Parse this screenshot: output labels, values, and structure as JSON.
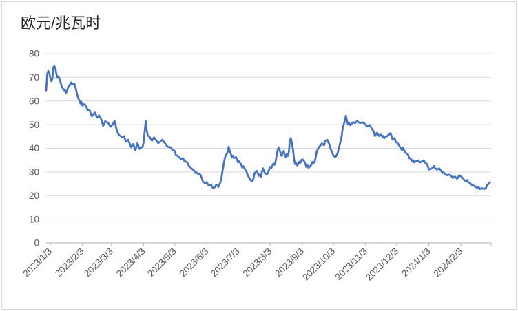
{
  "chart_data": {
    "type": "line",
    "title": "欧元/兆瓦时",
    "legend": false,
    "grid": true,
    "x_axis": {
      "day_zero_date": "2023/1/3",
      "axis_day_range": [
        -4,
        425
      ],
      "tick_labels": [
        "2023/1/3",
        "2023/2/3",
        "2023/3/3",
        "2023/4/3",
        "2023/5/3",
        "2023/6/3",
        "2023/7/3",
        "2023/8/3",
        "2023/9/3",
        "2023/10/3",
        "2023/11/3",
        "2023/12/3",
        "2024/1/3",
        "2024/2/3"
      ],
      "tick_day_offsets": [
        0,
        31,
        59,
        90,
        120,
        151,
        181,
        212,
        243,
        273,
        304,
        334,
        365,
        396
      ]
    },
    "y_axis": {
      "min": 0,
      "max": 80,
      "tick_step": 10,
      "tick_labels": [
        "0",
        "10",
        "20",
        "30",
        "40",
        "50",
        "60",
        "70",
        "80"
      ]
    },
    "series": [
      {
        "points_day_value": [
          [
            -4,
            64.5
          ],
          [
            -3,
            71.3
          ],
          [
            -2,
            72.7
          ],
          [
            -1,
            71.9
          ],
          [
            0,
            69.8
          ],
          [
            1,
            68.4
          ],
          [
            2,
            69.3
          ],
          [
            3,
            74.2
          ],
          [
            4,
            74.7
          ],
          [
            5,
            73.6
          ],
          [
            6,
            71.3
          ],
          [
            7,
            69.8
          ],
          [
            8,
            70.4
          ],
          [
            9,
            69.0
          ],
          [
            10,
            67.8
          ],
          [
            11,
            66.0
          ],
          [
            13,
            64.6
          ],
          [
            14,
            64.9
          ],
          [
            15,
            63.4
          ],
          [
            16,
            64.0
          ],
          [
            17,
            65.5
          ],
          [
            18,
            66.3
          ],
          [
            19,
            66.9
          ],
          [
            20,
            67.8
          ],
          [
            21,
            66.9
          ],
          [
            23,
            67.5
          ],
          [
            24,
            66.0
          ],
          [
            25,
            64.6
          ],
          [
            26,
            62.5
          ],
          [
            27,
            61.1
          ],
          [
            28,
            60.2
          ],
          [
            29,
            59.0
          ],
          [
            30,
            59.6
          ],
          [
            31,
            58.1
          ],
          [
            33,
            58.7
          ],
          [
            35,
            57.3
          ],
          [
            36,
            56.1
          ],
          [
            38,
            56.0
          ],
          [
            40,
            53.6
          ],
          [
            43,
            55.1
          ],
          [
            45,
            53.0
          ],
          [
            47,
            53.9
          ],
          [
            49,
            52.4
          ],
          [
            51,
            49.5
          ],
          [
            53,
            51.5
          ],
          [
            56,
            50.6
          ],
          [
            58,
            49.1
          ],
          [
            60,
            50.0
          ],
          [
            62,
            51.5
          ],
          [
            64,
            47.7
          ],
          [
            66,
            45.7
          ],
          [
            69,
            44.8
          ],
          [
            71,
            45.1
          ],
          [
            73,
            42.8
          ],
          [
            75,
            43.6
          ],
          [
            78,
            40.4
          ],
          [
            80,
            41.8
          ],
          [
            82,
            39.2
          ],
          [
            84,
            42.1
          ],
          [
            86,
            39.8
          ],
          [
            89,
            40.7
          ],
          [
            90,
            42.5
          ],
          [
            92,
            51.5
          ],
          [
            93,
            47.5
          ],
          [
            94,
            45.5
          ],
          [
            96,
            44.6
          ],
          [
            98,
            43.2
          ],
          [
            100,
            44.6
          ],
          [
            102,
            43.5
          ],
          [
            104,
            42.2
          ],
          [
            106,
            42.8
          ],
          [
            108,
            43.6
          ],
          [
            111,
            41.9
          ],
          [
            113,
            40.7
          ],
          [
            116,
            40.4
          ],
          [
            118,
            39.2
          ],
          [
            120,
            38.9
          ],
          [
            121,
            37.3
          ],
          [
            124,
            36.3
          ],
          [
            126,
            35.4
          ],
          [
            128,
            35.8
          ],
          [
            129,
            34.8
          ],
          [
            132,
            34.0
          ],
          [
            133,
            33.0
          ],
          [
            135,
            31.9
          ],
          [
            139,
            30.4
          ],
          [
            140,
            29.6
          ],
          [
            141,
            29.8
          ],
          [
            143,
            29.0
          ],
          [
            144,
            29.2
          ],
          [
            145,
            28.6
          ],
          [
            146,
            27.5
          ],
          [
            147,
            26.1
          ],
          [
            149,
            25.2
          ],
          [
            151,
            25.7
          ],
          [
            152,
            24.6
          ],
          [
            154,
            24.3
          ],
          [
            155,
            24.6
          ],
          [
            156,
            23.7
          ],
          [
            157,
            23.1
          ],
          [
            159,
            23.7
          ],
          [
            160,
            24.6
          ],
          [
            161,
            24.3
          ],
          [
            162,
            23.7
          ],
          [
            163,
            24.6
          ],
          [
            164,
            25.7
          ],
          [
            165,
            27.5
          ],
          [
            166,
            30.4
          ],
          [
            167,
            33.0
          ],
          [
            168,
            35.4
          ],
          [
            169,
            36.9
          ],
          [
            171,
            38.3
          ],
          [
            172,
            40.7
          ],
          [
            173,
            38.9
          ],
          [
            174,
            37.8
          ],
          [
            175,
            36.3
          ],
          [
            176,
            36.9
          ],
          [
            177,
            35.8
          ],
          [
            179,
            36.3
          ],
          [
            180,
            35.4
          ],
          [
            181,
            34.0
          ],
          [
            182,
            34.5
          ],
          [
            184,
            33.1
          ],
          [
            185,
            31.9
          ],
          [
            186,
            32.5
          ],
          [
            187,
            31.6
          ],
          [
            189,
            30.4
          ],
          [
            190,
            29.0
          ],
          [
            191,
            28.1
          ],
          [
            193,
            26.6
          ],
          [
            195,
            26.1
          ],
          [
            196,
            27.5
          ],
          [
            197,
            29.5
          ],
          [
            199,
            30.4
          ],
          [
            200,
            29.4
          ],
          [
            201,
            28.4
          ],
          [
            202,
            28.9
          ],
          [
            203,
            27.9
          ],
          [
            204,
            29.9
          ],
          [
            205,
            31.5
          ],
          [
            206,
            30.4
          ],
          [
            207,
            29.4
          ],
          [
            209,
            28.9
          ],
          [
            210,
            29.9
          ],
          [
            211,
            31.0
          ],
          [
            212,
            32.1
          ],
          [
            213,
            31.5
          ],
          [
            214,
            32.5
          ],
          [
            215,
            33.5
          ],
          [
            216,
            33.0
          ],
          [
            217,
            34.0
          ],
          [
            219,
            38.9
          ],
          [
            220,
            40.4
          ],
          [
            221,
            39.4
          ],
          [
            222,
            37.9
          ],
          [
            223,
            36.8
          ],
          [
            224,
            37.9
          ],
          [
            225,
            38.9
          ],
          [
            226,
            37.4
          ],
          [
            227,
            36.3
          ],
          [
            228,
            37.4
          ],
          [
            229,
            36.8
          ],
          [
            230,
            38.4
          ],
          [
            231,
            43.4
          ],
          [
            232,
            44.3
          ],
          [
            233,
            42.0
          ],
          [
            234,
            39.4
          ],
          [
            235,
            35.3
          ],
          [
            236,
            33.3
          ],
          [
            237,
            33.8
          ],
          [
            238,
            32.8
          ],
          [
            239,
            33.3
          ],
          [
            240,
            34.3
          ],
          [
            241,
            33.8
          ],
          [
            242,
            35.0
          ],
          [
            243,
            35.3
          ],
          [
            244,
            35.0
          ],
          [
            245,
            34.3
          ],
          [
            246,
            33.3
          ],
          [
            247,
            32.1
          ],
          [
            248,
            32.8
          ],
          [
            249,
            31.8
          ],
          [
            250,
            32.1
          ],
          [
            252,
            33.3
          ],
          [
            253,
            34.3
          ],
          [
            254,
            33.8
          ],
          [
            255,
            34.5
          ],
          [
            256,
            36.5
          ],
          [
            257,
            38.9
          ],
          [
            259,
            40.4
          ],
          [
            262,
            42.1
          ],
          [
            264,
            41.3
          ],
          [
            265,
            43.1
          ],
          [
            267,
            43.6
          ],
          [
            269,
            41.6
          ],
          [
            270,
            40.1
          ],
          [
            272,
            37.9
          ],
          [
            273,
            36.9
          ],
          [
            275,
            36.3
          ],
          [
            277,
            37.9
          ],
          [
            279,
            41.3
          ],
          [
            281,
            45.2
          ],
          [
            282,
            48.7
          ],
          [
            284,
            51.6
          ],
          [
            285,
            53.8
          ],
          [
            286,
            51.6
          ],
          [
            287,
            50.1
          ],
          [
            288,
            50.7
          ],
          [
            289,
            49.8
          ],
          [
            290,
            50.1
          ],
          [
            292,
            51.0
          ],
          [
            294,
            50.7
          ],
          [
            296,
            51.6
          ],
          [
            297,
            51.0
          ],
          [
            299,
            50.7
          ],
          [
            301,
            51.0
          ],
          [
            304,
            50.1
          ],
          [
            305,
            49.2
          ],
          [
            308,
            49.8
          ],
          [
            310,
            48.3
          ],
          [
            312,
            46.9
          ],
          [
            313,
            45.2
          ],
          [
            315,
            46.6
          ],
          [
            317,
            45.2
          ],
          [
            319,
            45.8
          ],
          [
            320,
            44.9
          ],
          [
            321,
            45.2
          ],
          [
            322,
            44.3
          ],
          [
            323,
            44.8
          ],
          [
            325,
            45.2
          ],
          [
            328,
            46.4
          ],
          [
            329,
            45.2
          ],
          [
            330,
            43.7
          ],
          [
            332,
            44.3
          ],
          [
            333,
            42.8
          ],
          [
            335,
            42.1
          ],
          [
            337,
            40.7
          ],
          [
            339,
            39.2
          ],
          [
            340,
            40.3
          ],
          [
            342,
            38.3
          ],
          [
            345,
            37.3
          ],
          [
            346,
            35.9
          ],
          [
            348,
            35.4
          ],
          [
            349,
            34.4
          ],
          [
            350,
            34.9
          ],
          [
            351,
            34.0
          ],
          [
            352,
            34.4
          ],
          [
            355,
            34.9
          ],
          [
            356,
            34.0
          ],
          [
            358,
            34.4
          ],
          [
            360,
            34.9
          ],
          [
            361,
            34.0
          ],
          [
            363,
            33.4
          ],
          [
            364,
            32.5
          ],
          [
            365,
            31.0
          ],
          [
            368,
            31.5
          ],
          [
            370,
            32.5
          ],
          [
            371,
            31.5
          ],
          [
            373,
            31.0
          ],
          [
            375,
            31.5
          ],
          [
            377,
            30.4
          ],
          [
            378,
            29.5
          ],
          [
            379,
            30.0
          ],
          [
            381,
            28.9
          ],
          [
            383,
            28.6
          ],
          [
            385,
            28.9
          ],
          [
            387,
            28.1
          ],
          [
            388,
            27.5
          ],
          [
            390,
            28.1
          ],
          [
            392,
            27.2
          ],
          [
            393,
            27.5
          ],
          [
            394,
            28.6
          ],
          [
            396,
            28.1
          ],
          [
            398,
            27.2
          ],
          [
            399,
            26.6
          ],
          [
            401,
            26.1
          ],
          [
            402,
            26.6
          ],
          [
            403,
            25.7
          ],
          [
            405,
            25.2
          ],
          [
            406,
            24.6
          ],
          [
            408,
            24.3
          ],
          [
            410,
            23.7
          ],
          [
            412,
            23.1
          ],
          [
            413,
            23.7
          ],
          [
            414,
            22.8
          ],
          [
            416,
            23.1
          ],
          [
            418,
            22.8
          ],
          [
            420,
            23.1
          ],
          [
            421,
            24.3
          ],
          [
            423,
            25.2
          ],
          [
            424,
            25.7
          ]
        ]
      }
    ]
  },
  "style": {
    "line_color": "#4472C4",
    "gridline_color": "#D9D9D9",
    "axis_color": "#BFBFBF",
    "label_color": "#595959",
    "title_color": "#262626",
    "border_color": "#D9D9D9",
    "background": "#FFFFFF"
  }
}
